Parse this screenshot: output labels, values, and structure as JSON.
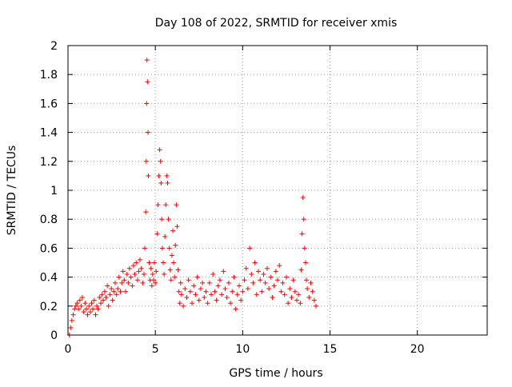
{
  "chart_data": {
    "type": "scatter",
    "title": "Day 108 of 2022, SRMTID for receiver xmis",
    "xlabel": "GPS time / hours",
    "ylabel": "SRMTID / TECUs",
    "xlim": [
      0,
      24
    ],
    "ylim": [
      0,
      2
    ],
    "xticks": [
      0,
      5,
      10,
      15,
      20
    ],
    "xtick_labels": [
      "0",
      "5",
      "10",
      "15",
      "20"
    ],
    "yticks": [
      0,
      0.2,
      0.4,
      0.6,
      0.8,
      1,
      1.2,
      1.4,
      1.6,
      1.8,
      2
    ],
    "ytick_labels": [
      "0",
      "0.2",
      "0.4",
      "0.6",
      "0.8",
      "1",
      "1.2",
      "1.4",
      "1.6",
      "1.8",
      "2"
    ],
    "grid": true,
    "marker": "+",
    "color": "#ff0000",
    "series": [
      {
        "name": "xmis",
        "x": [
          0.08,
          0.15,
          0.22,
          0.3,
          0.38,
          0.45,
          0.52,
          0.6,
          0.68,
          0.75,
          0.82,
          0.9,
          0.98,
          1.05,
          1.12,
          1.2,
          1.28,
          1.35,
          1.42,
          1.5,
          1.58,
          1.65,
          1.72,
          1.8,
          1.88,
          1.95,
          2.02,
          2.1,
          2.18,
          2.25,
          2.32,
          2.4,
          2.48,
          2.55,
          2.62,
          2.7,
          2.78,
          2.85,
          2.92,
          3.0,
          3.08,
          3.15,
          3.22,
          3.3,
          3.38,
          3.45,
          3.52,
          3.6,
          3.68,
          3.75,
          3.82,
          3.9,
          3.98,
          4.05,
          4.12,
          4.2,
          4.28,
          4.35,
          4.4,
          4.45,
          4.48,
          4.5,
          4.52,
          4.55,
          4.58,
          4.6,
          4.65,
          4.7,
          4.75,
          4.8,
          4.85,
          4.9,
          4.95,
          5.0,
          5.05,
          5.1,
          5.15,
          5.2,
          5.25,
          5.3,
          5.33,
          5.36,
          5.4,
          5.45,
          5.5,
          5.55,
          5.6,
          5.65,
          5.7,
          5.75,
          5.8,
          5.85,
          5.9,
          5.95,
          6.0,
          6.05,
          6.1,
          6.15,
          6.2,
          6.25,
          6.3,
          6.35,
          6.4,
          6.45,
          6.5,
          6.6,
          6.7,
          6.8,
          6.9,
          7.0,
          7.1,
          7.2,
          7.3,
          7.4,
          7.5,
          7.6,
          7.7,
          7.8,
          7.9,
          8.0,
          8.1,
          8.2,
          8.3,
          8.4,
          8.5,
          8.6,
          8.7,
          8.8,
          8.9,
          9.0,
          9.1,
          9.2,
          9.3,
          9.4,
          9.5,
          9.6,
          9.7,
          9.8,
          9.9,
          10.0,
          10.1,
          10.2,
          10.3,
          10.4,
          10.5,
          10.6,
          10.7,
          10.8,
          10.9,
          11.0,
          11.1,
          11.2,
          11.3,
          11.4,
          11.5,
          11.6,
          11.7,
          11.8,
          11.9,
          12.0,
          12.1,
          12.2,
          12.3,
          12.4,
          12.5,
          12.6,
          12.7,
          12.8,
          12.9,
          13.0,
          13.1,
          13.2,
          13.3,
          13.35,
          13.4,
          13.45,
          13.5,
          13.55,
          13.6,
          13.65,
          13.7,
          13.8,
          13.9,
          14.0,
          14.1,
          14.2
        ],
        "y": [
          0.0,
          0.05,
          0.1,
          0.14,
          0.18,
          0.2,
          0.22,
          0.18,
          0.24,
          0.2,
          0.26,
          0.16,
          0.22,
          0.18,
          0.14,
          0.2,
          0.16,
          0.22,
          0.18,
          0.24,
          0.14,
          0.2,
          0.18,
          0.26,
          0.22,
          0.28,
          0.24,
          0.3,
          0.26,
          0.34,
          0.2,
          0.28,
          0.32,
          0.24,
          0.3,
          0.36,
          0.28,
          0.32,
          0.4,
          0.3,
          0.36,
          0.44,
          0.38,
          0.3,
          0.42,
          0.36,
          0.46,
          0.4,
          0.34,
          0.48,
          0.42,
          0.5,
          0.38,
          0.44,
          0.52,
          0.46,
          0.36,
          0.42,
          0.6,
          0.85,
          1.2,
          1.6,
          1.9,
          1.75,
          1.4,
          1.1,
          0.5,
          0.38,
          0.46,
          0.34,
          0.42,
          0.38,
          0.5,
          0.36,
          0.44,
          0.7,
          0.9,
          1.1,
          1.28,
          1.2,
          1.05,
          0.8,
          0.6,
          0.5,
          0.42,
          0.68,
          0.9,
          1.1,
          1.05,
          0.8,
          0.6,
          0.45,
          0.38,
          0.55,
          0.72,
          0.5,
          0.4,
          0.62,
          0.9,
          0.75,
          0.45,
          0.3,
          0.22,
          0.36,
          0.28,
          0.2,
          0.32,
          0.26,
          0.38,
          0.3,
          0.22,
          0.34,
          0.28,
          0.4,
          0.24,
          0.32,
          0.36,
          0.26,
          0.3,
          0.22,
          0.36,
          0.28,
          0.42,
          0.3,
          0.24,
          0.34,
          0.38,
          0.28,
          0.44,
          0.32,
          0.26,
          0.36,
          0.22,
          0.3,
          0.4,
          0.18,
          0.28,
          0.34,
          0.24,
          0.3,
          0.38,
          0.46,
          0.32,
          0.6,
          0.42,
          0.36,
          0.5,
          0.28,
          0.44,
          0.38,
          0.3,
          0.42,
          0.36,
          0.46,
          0.32,
          0.4,
          0.26,
          0.34,
          0.44,
          0.38,
          0.48,
          0.3,
          0.36,
          0.28,
          0.4,
          0.22,
          0.32,
          0.26,
          0.38,
          0.3,
          0.24,
          0.28,
          0.22,
          0.45,
          0.7,
          0.95,
          0.8,
          0.6,
          0.5,
          0.38,
          0.32,
          0.26,
          0.36,
          0.3,
          0.24,
          0.2
        ]
      }
    ]
  }
}
